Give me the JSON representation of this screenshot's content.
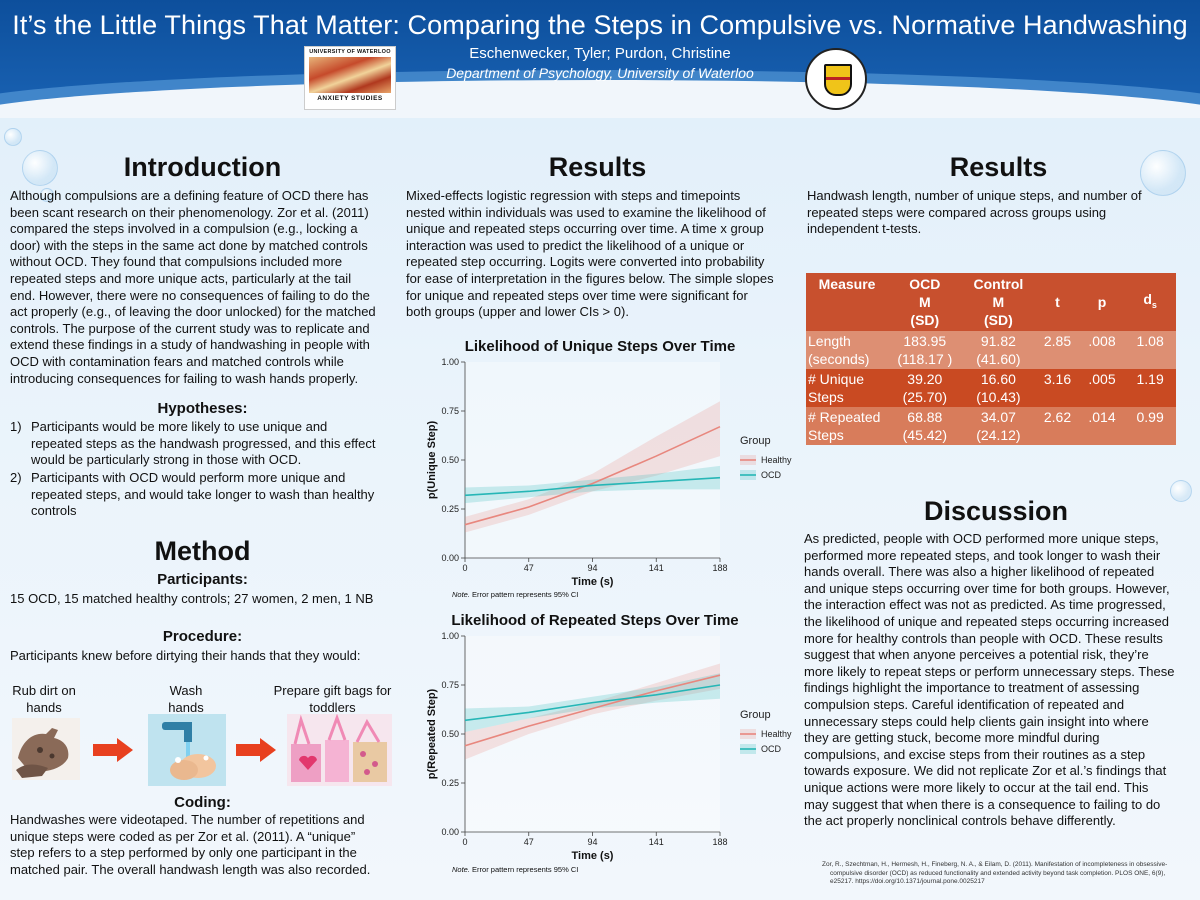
{
  "header": {
    "title": "It’s the Little Things That Matter: Comparing the Steps in Compulsive vs. Normative Handwashing",
    "authors": "Eschenwecker, Tyler; Purdon, Christine",
    "department": "Department of Psychology, University of Waterloo",
    "logo_left": {
      "top_text": "UNIVERSITY OF WATERLOO",
      "bottom_text": "ANXIETY STUDIES"
    }
  },
  "introduction": {
    "heading": "Introduction",
    "lines": [
      "Although compulsions are a defining feature of OCD there has",
      "been scant research on their phenomenology. Zor et al. (2011)",
      "compared the steps involved in a compulsion (e.g., locking a",
      "door) with the steps in the same act done by matched controls",
      "without OCD. They found that compulsions included more",
      "repeated steps and more unique acts, particularly at the tail",
      "end. However, there were no consequences of failing to do the",
      "act properly (e.g., of leaving the door unlocked) for the matched",
      "controls. The purpose of the current study was to replicate and",
      "extend these findings in a study of handwashing in people with",
      "OCD with contamination fears and matched controls while",
      "introducing consequences for failing to wash hands properly."
    ]
  },
  "hypotheses": {
    "heading": "Hypotheses:",
    "items": [
      {
        "num": "1)",
        "lines": [
          "Participants would be more likely to use unique and",
          "repeated steps as the handwash progressed, and this effect",
          "would be particularly strong in those with OCD."
        ]
      },
      {
        "num": "2)",
        "lines": [
          "Participants with OCD would perform more unique and",
          "repeated steps, and would take longer to wash than healthy",
          "controls"
        ]
      }
    ]
  },
  "method": {
    "heading": "Method",
    "participants_heading": "Participants:",
    "participants_text": "15 OCD, 15 matched healthy controls; 27 women, 2 men, 1 NB",
    "procedure_heading": "Procedure:",
    "procedure_text": "Participants knew before dirtying their hands that they would:",
    "steps": [
      {
        "lines": [
          "Rub dirt on",
          "hands"
        ]
      },
      {
        "lines": [
          "Wash",
          "hands"
        ]
      },
      {
        "lines": [
          "Prepare gift bags for",
          "toddlers"
        ]
      }
    ],
    "coding_heading": "Coding:",
    "coding_lines": [
      "Handwashes were videotaped. The number of repetitions and",
      "unique steps were coded as per Zor et al. (2011). A “unique”",
      "step refers to a step performed by only one participant in the",
      "matched pair. The overall handwash length was also recorded."
    ]
  },
  "results_mid": {
    "heading": "Results",
    "lines": [
      "Mixed-effects logistic regression with steps and timepoints",
      "nested within individuals was used to examine the likelihood of",
      "unique and repeated steps occurring over time. A time x group",
      "interaction was used to predict the likelihood of a unique or",
      "repeated step occurring. Logits were converted into probability",
      "for ease of interpretation in the figures below. The simple slopes",
      "for unique and repeated steps over time were significant for",
      "both groups (upper and lower CIs > 0)."
    ],
    "note_label": "Note.",
    "note_text": " Error pattern represents 95% CI"
  },
  "chart_data": [
    {
      "type": "line",
      "title": "Likelihood of Unique Steps Over Time",
      "xlabel": "Time (s)",
      "ylabel": "p(Unique Step)",
      "x_ticks": [
        "0",
        "47",
        "94",
        "141",
        "188"
      ],
      "y_ticks": [
        "0.00",
        "0.25",
        "0.50",
        "0.75",
        "1.00"
      ],
      "xlim": [
        0,
        188
      ],
      "ylim": [
        0,
        1
      ],
      "legend_title": "Group",
      "legend_position": "right",
      "x": [
        0,
        47,
        94,
        141,
        188
      ],
      "series": [
        {
          "name": "Healthy",
          "color": "#e8877e",
          "values": [
            0.17,
            0.26,
            0.38,
            0.52,
            0.67
          ],
          "ci_low": [
            0.13,
            0.22,
            0.34,
            0.42,
            0.52
          ],
          "ci_high": [
            0.21,
            0.3,
            0.43,
            0.62,
            0.8
          ]
        },
        {
          "name": "OCD",
          "color": "#26b6b6",
          "values": [
            0.32,
            0.34,
            0.37,
            0.39,
            0.41
          ],
          "ci_low": [
            0.28,
            0.31,
            0.34,
            0.35,
            0.35
          ],
          "ci_high": [
            0.36,
            0.37,
            0.4,
            0.43,
            0.47
          ]
        }
      ]
    },
    {
      "type": "line",
      "title": "Likelihood of Repeated Steps Over Time",
      "xlabel": "Time (s)",
      "ylabel": "p(Repeated Step)",
      "x_ticks": [
        "0",
        "47",
        "94",
        "141",
        "188"
      ],
      "y_ticks": [
        "0.00",
        "0.25",
        "0.50",
        "0.75",
        "1.00"
      ],
      "xlim": [
        0,
        188
      ],
      "ylim": [
        0,
        1
      ],
      "legend_title": "Group",
      "legend_position": "right",
      "x": [
        0,
        47,
        94,
        141,
        188
      ],
      "series": [
        {
          "name": "Healthy",
          "color": "#e8877e",
          "values": [
            0.44,
            0.54,
            0.63,
            0.72,
            0.8
          ],
          "ci_low": [
            0.37,
            0.5,
            0.6,
            0.67,
            0.73
          ],
          "ci_high": [
            0.51,
            0.58,
            0.66,
            0.76,
            0.86
          ]
        },
        {
          "name": "OCD",
          "color": "#26b6b6",
          "values": [
            0.57,
            0.61,
            0.66,
            0.7,
            0.75
          ],
          "ci_low": [
            0.51,
            0.58,
            0.63,
            0.66,
            0.68
          ],
          "ci_high": [
            0.63,
            0.64,
            0.69,
            0.74,
            0.81
          ]
        }
      ]
    }
  ],
  "results_right": {
    "heading": "Results",
    "lines": [
      "Handwash length, number of unique steps, and number of",
      "repeated steps were compared across groups using",
      "independent t-tests."
    ],
    "table": {
      "headers": [
        "Measure",
        "OCD M (SD)",
        "Control M (SD)",
        "t",
        "p",
        "ds"
      ],
      "header_lines": [
        [
          "Measure"
        ],
        [
          "OCD",
          "M",
          "(SD)"
        ],
        [
          "Control",
          "M",
          "(SD)"
        ],
        [
          "t"
        ],
        [
          "p"
        ],
        [
          "d",
          "s"
        ]
      ],
      "rows": [
        {
          "measure": [
            "Length",
            "(seconds)"
          ],
          "ocd": [
            "183.95",
            "(118.17 )"
          ],
          "control": [
            "91.82",
            "(41.60)"
          ],
          "t": "2.85",
          "p": ".008",
          "d": "1.08"
        },
        {
          "measure": [
            "# Unique",
            "Steps"
          ],
          "ocd": [
            "39.20",
            "(25.70)"
          ],
          "control": [
            "16.60",
            "(10.43)"
          ],
          "t": "3.16",
          "p": ".005",
          "d": "1.19"
        },
        {
          "measure": [
            "# Repeated",
            "Steps"
          ],
          "ocd": [
            "68.88",
            "(45.42)"
          ],
          "control": [
            "34.07",
            "(24.12)"
          ],
          "t": "2.62",
          "p": ".014",
          "d": "0.99"
        }
      ]
    }
  },
  "discussion": {
    "heading": "Discussion",
    "lines": [
      "As predicted, people with OCD performed more unique steps,",
      "performed more repeated steps, and took longer to wash their",
      "hands overall. There was also a higher likelihood of repeated",
      "and unique steps occurring over time for both groups. However,",
      "the interaction effect was not as predicted. As time progressed,",
      "the likelihood of unique and repeated steps occurring increased",
      "more for healthy controls than people with OCD. These results",
      "suggest that when anyone perceives a potential risk, they’re",
      "more likely to repeat steps or perform unnecessary steps. These",
      "findings highlight the importance to treatment of assessing",
      "compulsion steps. Careful identification of repeated and",
      "unnecessary steps could help clients gain insight into where",
      "they are getting stuck, become more mindful during",
      "compulsions, and excise steps from their routines as a step",
      "towards exposure. We did not replicate Zor et al.’s findings that",
      "unique actions were more likely to occur at the tail end. This",
      "may suggest that when there is a consequence to failing to do",
      "the act properly nonclinical controls behave differently."
    ]
  },
  "reference": {
    "lines": [
      "Zor, R., Szechtman, H., Hermesh, H., Fineberg, N. A., & Eilam, D. (2011). Manifestation of incompleteness in obsessive-",
      "compulsive disorder (OCD) as reduced functionality and extended activity beyond task completion. PLOS ONE, 6(9),",
      "e25217. https://doi.org/10.1371/journal.pone.0025217"
    ]
  }
}
